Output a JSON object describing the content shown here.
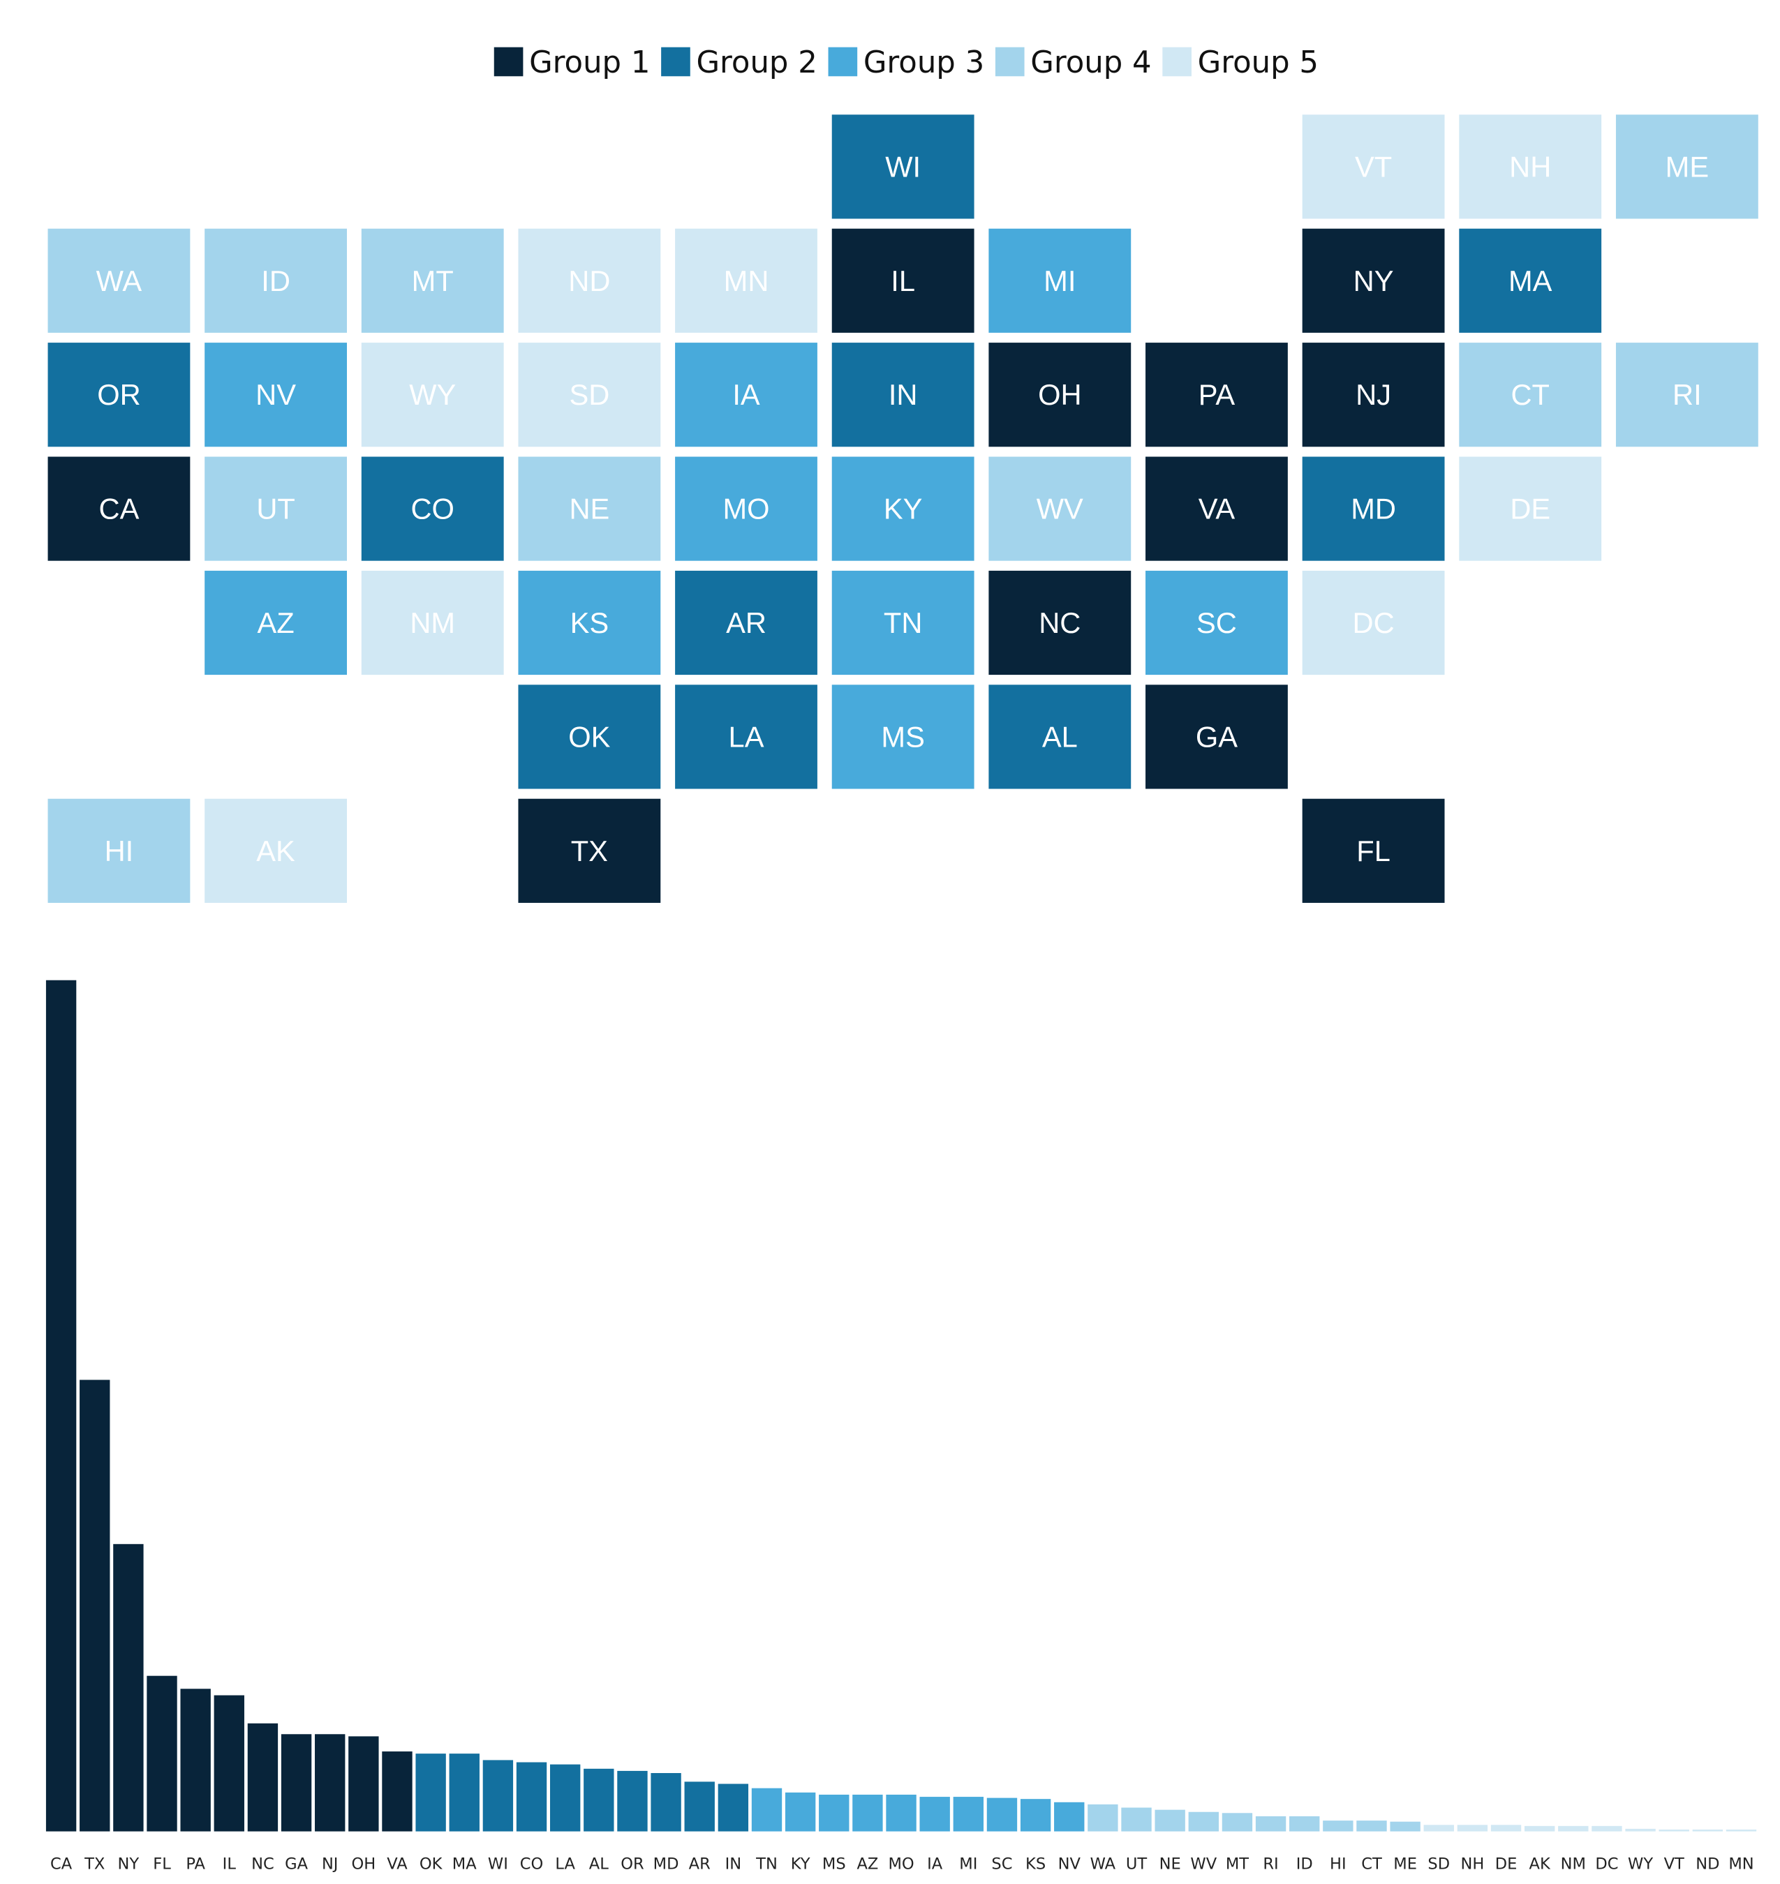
{
  "palette": {
    "group1": "#08243a",
    "group2": "#13709f",
    "group3": "#48aadb",
    "group4": "#a3d4ec",
    "group5": "#d1e8f4"
  },
  "legend": {
    "items": [
      {
        "label": "Group 1",
        "color": "#08243a"
      },
      {
        "label": "Group 2",
        "color": "#13709f"
      },
      {
        "label": "Group 3",
        "color": "#48aadb"
      },
      {
        "label": "Group 4",
        "color": "#a3d4ec"
      },
      {
        "label": "Group 5",
        "color": "#d1e8f4"
      }
    ]
  },
  "chart_data": [
    {
      "type": "heatmap",
      "title": "",
      "subtitle": "",
      "grid": false,
      "legend_position": "top-center",
      "tiles": [
        {
          "state": "WI",
          "row": 0,
          "col": 5,
          "group": 2
        },
        {
          "state": "VT",
          "row": 0,
          "col": 8,
          "group": 5
        },
        {
          "state": "NH",
          "row": 0,
          "col": 9,
          "group": 5
        },
        {
          "state": "ME",
          "row": 0,
          "col": 10,
          "group": 4
        },
        {
          "state": "WA",
          "row": 1,
          "col": 0,
          "group": 4
        },
        {
          "state": "ID",
          "row": 1,
          "col": 1,
          "group": 4
        },
        {
          "state": "MT",
          "row": 1,
          "col": 2,
          "group": 4
        },
        {
          "state": "ND",
          "row": 1,
          "col": 3,
          "group": 5
        },
        {
          "state": "MN",
          "row": 1,
          "col": 4,
          "group": 5
        },
        {
          "state": "IL",
          "row": 1,
          "col": 5,
          "group": 1
        },
        {
          "state": "MI",
          "row": 1,
          "col": 6,
          "group": 3
        },
        {
          "state": "NY",
          "row": 1,
          "col": 8,
          "group": 1
        },
        {
          "state": "MA",
          "row": 1,
          "col": 9,
          "group": 2
        },
        {
          "state": "OR",
          "row": 2,
          "col": 0,
          "group": 2
        },
        {
          "state": "NV",
          "row": 2,
          "col": 1,
          "group": 3
        },
        {
          "state": "WY",
          "row": 2,
          "col": 2,
          "group": 5
        },
        {
          "state": "SD",
          "row": 2,
          "col": 3,
          "group": 5
        },
        {
          "state": "IA",
          "row": 2,
          "col": 4,
          "group": 3
        },
        {
          "state": "IN",
          "row": 2,
          "col": 5,
          "group": 2
        },
        {
          "state": "OH",
          "row": 2,
          "col": 6,
          "group": 1
        },
        {
          "state": "PA",
          "row": 2,
          "col": 7,
          "group": 1
        },
        {
          "state": "NJ",
          "row": 2,
          "col": 8,
          "group": 1
        },
        {
          "state": "CT",
          "row": 2,
          "col": 9,
          "group": 4
        },
        {
          "state": "RI",
          "row": 2,
          "col": 10,
          "group": 4
        },
        {
          "state": "CA",
          "row": 3,
          "col": 0,
          "group": 1
        },
        {
          "state": "UT",
          "row": 3,
          "col": 1,
          "group": 4
        },
        {
          "state": "CO",
          "row": 3,
          "col": 2,
          "group": 2
        },
        {
          "state": "NE",
          "row": 3,
          "col": 3,
          "group": 4
        },
        {
          "state": "MO",
          "row": 3,
          "col": 4,
          "group": 3
        },
        {
          "state": "KY",
          "row": 3,
          "col": 5,
          "group": 3
        },
        {
          "state": "WV",
          "row": 3,
          "col": 6,
          "group": 4
        },
        {
          "state": "VA",
          "row": 3,
          "col": 7,
          "group": 1
        },
        {
          "state": "MD",
          "row": 3,
          "col": 8,
          "group": 2
        },
        {
          "state": "DE",
          "row": 3,
          "col": 9,
          "group": 5
        },
        {
          "state": "AZ",
          "row": 4,
          "col": 1,
          "group": 3
        },
        {
          "state": "NM",
          "row": 4,
          "col": 2,
          "group": 5
        },
        {
          "state": "KS",
          "row": 4,
          "col": 3,
          "group": 3
        },
        {
          "state": "AR",
          "row": 4,
          "col": 4,
          "group": 2
        },
        {
          "state": "TN",
          "row": 4,
          "col": 5,
          "group": 3
        },
        {
          "state": "NC",
          "row": 4,
          "col": 6,
          "group": 1
        },
        {
          "state": "SC",
          "row": 4,
          "col": 7,
          "group": 3
        },
        {
          "state": "DC",
          "row": 4,
          "col": 8,
          "group": 5
        },
        {
          "state": "OK",
          "row": 5,
          "col": 3,
          "group": 2
        },
        {
          "state": "LA",
          "row": 5,
          "col": 4,
          "group": 2
        },
        {
          "state": "MS",
          "row": 5,
          "col": 5,
          "group": 3
        },
        {
          "state": "AL",
          "row": 5,
          "col": 6,
          "group": 2
        },
        {
          "state": "GA",
          "row": 5,
          "col": 7,
          "group": 1
        },
        {
          "state": "HI",
          "row": 6,
          "col": 0,
          "group": 4
        },
        {
          "state": "AK",
          "row": 6,
          "col": 1,
          "group": 5
        },
        {
          "state": "TX",
          "row": 6,
          "col": 3,
          "group": 1
        },
        {
          "state": "FL",
          "row": 6,
          "col": 8,
          "group": 1
        }
      ]
    },
    {
      "type": "bar",
      "title": "",
      "xlabel": "",
      "ylabel": "",
      "grid": false,
      "ylim": [
        0,
        39.5
      ],
      "categories": [
        "CA",
        "TX",
        "NY",
        "FL",
        "PA",
        "IL",
        "NC",
        "GA",
        "NJ",
        "OH",
        "VA",
        "OK",
        "MA",
        "WI",
        "CO",
        "LA",
        "AL",
        "OR",
        "MD",
        "AR",
        "IN",
        "TN",
        "KY",
        "MS",
        "AZ",
        "MO",
        "IA",
        "MI",
        "SC",
        "KS",
        "NV",
        "WA",
        "UT",
        "NE",
        "WV",
        "MT",
        "RI",
        "ID",
        "HI",
        "CT",
        "ME",
        "SD",
        "NH",
        "DE",
        "AK",
        "NM",
        "DC",
        "WY",
        "VT",
        "ND",
        "MN"
      ],
      "values": [
        39.4,
        20.9,
        13.3,
        7.2,
        6.6,
        6.3,
        5.0,
        4.5,
        4.5,
        4.4,
        3.7,
        3.6,
        3.6,
        3.3,
        3.2,
        3.1,
        2.9,
        2.8,
        2.7,
        2.3,
        2.2,
        2.0,
        1.8,
        1.7,
        1.7,
        1.7,
        1.6,
        1.6,
        1.55,
        1.5,
        1.35,
        1.25,
        1.1,
        1.0,
        0.9,
        0.85,
        0.7,
        0.7,
        0.5,
        0.5,
        0.45,
        0.3,
        0.3,
        0.3,
        0.25,
        0.25,
        0.25,
        0.12,
        0.08,
        0.05,
        0.05
      ],
      "groups": [
        1,
        1,
        1,
        1,
        1,
        1,
        1,
        1,
        1,
        1,
        1,
        2,
        2,
        2,
        2,
        2,
        2,
        2,
        2,
        2,
        2,
        3,
        3,
        3,
        3,
        3,
        3,
        3,
        3,
        3,
        3,
        4,
        4,
        4,
        4,
        4,
        4,
        4,
        4,
        4,
        4,
        5,
        5,
        5,
        5,
        5,
        5,
        5,
        5,
        5,
        5
      ]
    }
  ]
}
